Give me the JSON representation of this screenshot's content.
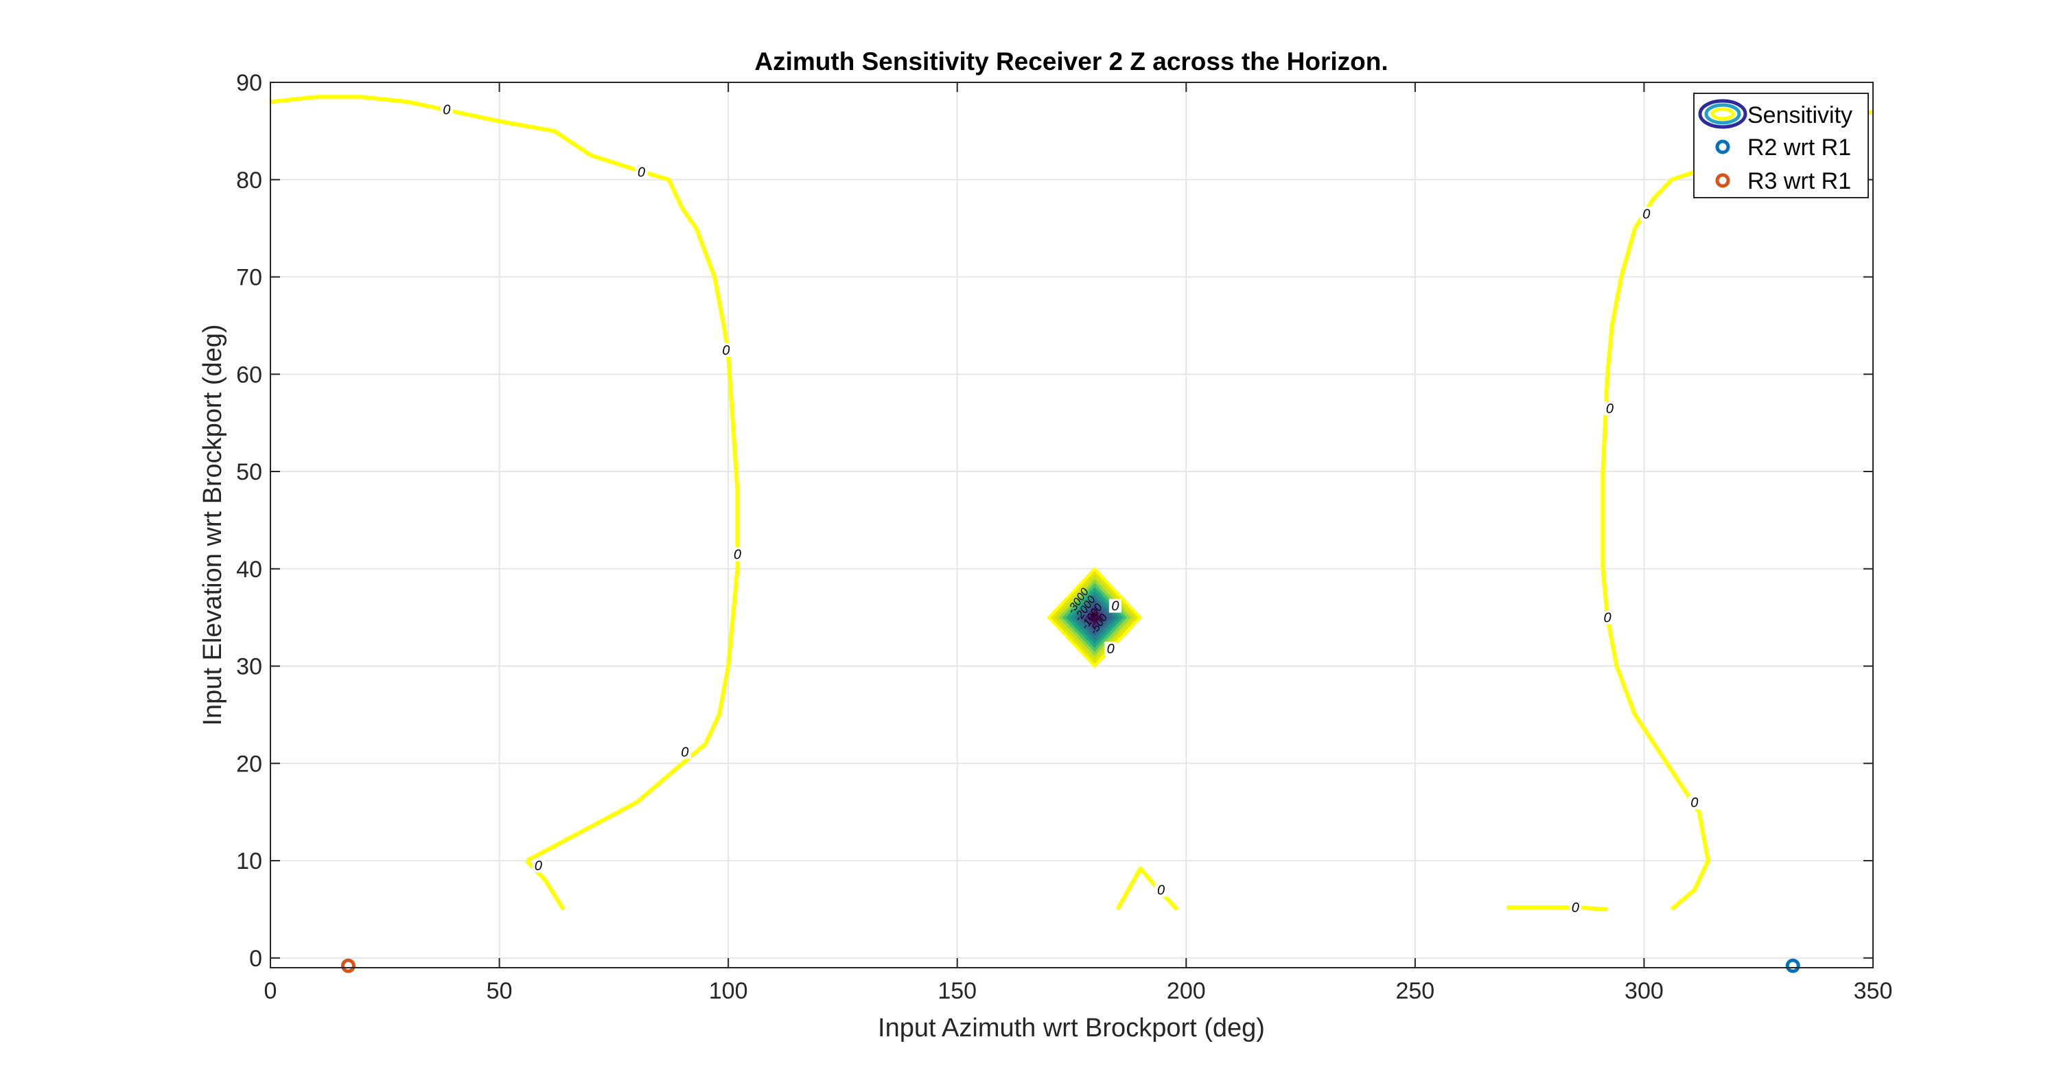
{
  "chart_data": {
    "type": "contour",
    "title": "Azimuth Sensitivity Receiver 2 Z across the Horizon.",
    "xlabel": "Input Azimuth wrt Brockport (deg)",
    "ylabel": "Input Elevation wrt Brockport (deg)",
    "xlim": [
      0,
      350
    ],
    "ylim": [
      -1,
      90
    ],
    "xticks": [
      0,
      50,
      100,
      150,
      200,
      250,
      300,
      350
    ],
    "yticks": [
      0,
      10,
      20,
      30,
      40,
      50,
      60,
      70,
      80,
      90
    ],
    "grid": true,
    "legend": {
      "placement": "top-right",
      "entries": [
        {
          "label": "Sensitivity",
          "marker": "contour-ellipses"
        },
        {
          "label": "R2 wrt R1",
          "marker": "circle",
          "color": "#0072BD"
        },
        {
          "label": "R3 wrt R1",
          "marker": "circle",
          "color": "#D95319"
        }
      ]
    },
    "contour_color": "#FFFF00",
    "contour_lines": [
      {
        "level": "0",
        "points": [
          [
            0,
            88
          ],
          [
            10,
            88.5
          ],
          [
            20,
            88.5
          ],
          [
            30,
            88
          ],
          [
            40,
            87
          ],
          [
            50,
            86
          ],
          [
            62,
            85
          ],
          [
            70,
            82.5
          ],
          [
            80,
            81
          ],
          [
            87,
            80
          ],
          [
            90,
            77
          ],
          [
            93,
            75
          ],
          [
            97,
            70
          ],
          [
            99,
            65
          ],
          [
            100,
            62
          ],
          [
            101,
            55
          ],
          [
            102,
            48
          ],
          [
            102,
            40
          ],
          [
            101,
            35
          ],
          [
            100,
            30
          ],
          [
            98,
            25
          ],
          [
            95,
            22
          ],
          [
            90,
            20
          ],
          [
            80,
            16
          ],
          [
            72,
            14
          ],
          [
            60,
            11
          ],
          [
            56,
            10
          ]
        ]
      },
      {
        "level": "0",
        "points": [
          [
            56,
            10
          ],
          [
            60,
            8
          ],
          [
            64,
            5
          ]
        ]
      },
      {
        "level": "0",
        "points": [
          [
            185,
            5
          ],
          [
            190,
            9.2
          ],
          [
            194,
            7
          ],
          [
            198,
            5
          ]
        ]
      },
      {
        "level": "0",
        "points": [
          [
            270,
            5.2
          ],
          [
            280,
            5.2
          ],
          [
            285,
            5.2
          ],
          [
            292,
            5
          ]
        ]
      },
      {
        "level": "0",
        "points": [
          [
            306,
            5
          ],
          [
            311,
            7
          ],
          [
            314,
            10
          ],
          [
            312,
            15
          ],
          [
            305,
            20
          ],
          [
            298,
            25
          ],
          [
            294,
            30
          ],
          [
            292,
            35
          ],
          [
            291,
            40
          ],
          [
            291,
            50
          ],
          [
            292,
            60
          ],
          [
            293,
            65
          ],
          [
            295,
            70
          ],
          [
            298,
            75
          ],
          [
            302,
            78
          ],
          [
            306,
            80
          ],
          [
            350,
            87
          ]
        ]
      }
    ],
    "contour_labels": [
      {
        "text": "0",
        "x": 38.5,
        "y": 87.2
      },
      {
        "text": "0",
        "x": 81,
        "y": 80.8
      },
      {
        "text": "0",
        "x": 99.5,
        "y": 62.5
      },
      {
        "text": "0",
        "x": 102,
        "y": 41.5
      },
      {
        "text": "0",
        "x": 90.5,
        "y": 21.2
      },
      {
        "text": "0",
        "x": 58.5,
        "y": 9.5
      },
      {
        "text": "0",
        "x": 194.5,
        "y": 7
      },
      {
        "text": "0",
        "x": 285,
        "y": 5.2
      },
      {
        "text": "0",
        "x": 292,
        "y": 35
      },
      {
        "text": "0",
        "x": 292.5,
        "y": 56.5
      },
      {
        "text": "0",
        "x": 300.5,
        "y": 76.5
      },
      {
        "text": "0",
        "x": 311,
        "y": 16
      },
      {
        "text": "0",
        "x": 184.5,
        "y": 36.2
      },
      {
        "text": "0",
        "x": 183.5,
        "y": 31.8
      }
    ],
    "central_feature": {
      "center": [
        180,
        35
      ],
      "half_width_x": 10,
      "half_height_y": 5,
      "colors": [
        "#FFFF00",
        "#E6E600",
        "#C8E020",
        "#8FD744",
        "#4CC26C",
        "#22A884",
        "#21918C",
        "#2A788E",
        "#33638D",
        "#3E4A89",
        "#482878",
        "#440154"
      ],
      "labels": [
        "-3000",
        "-2000",
        "-1000",
        "-500"
      ]
    },
    "series": [
      {
        "name": "R2 wrt R1",
        "color": "#0072BD",
        "marker": "circle",
        "points": [
          [
            332.5,
            -0.8
          ]
        ]
      },
      {
        "name": "R3 wrt R1",
        "color": "#D95319",
        "marker": "circle",
        "points": [
          [
            17,
            -0.8
          ]
        ]
      }
    ]
  }
}
